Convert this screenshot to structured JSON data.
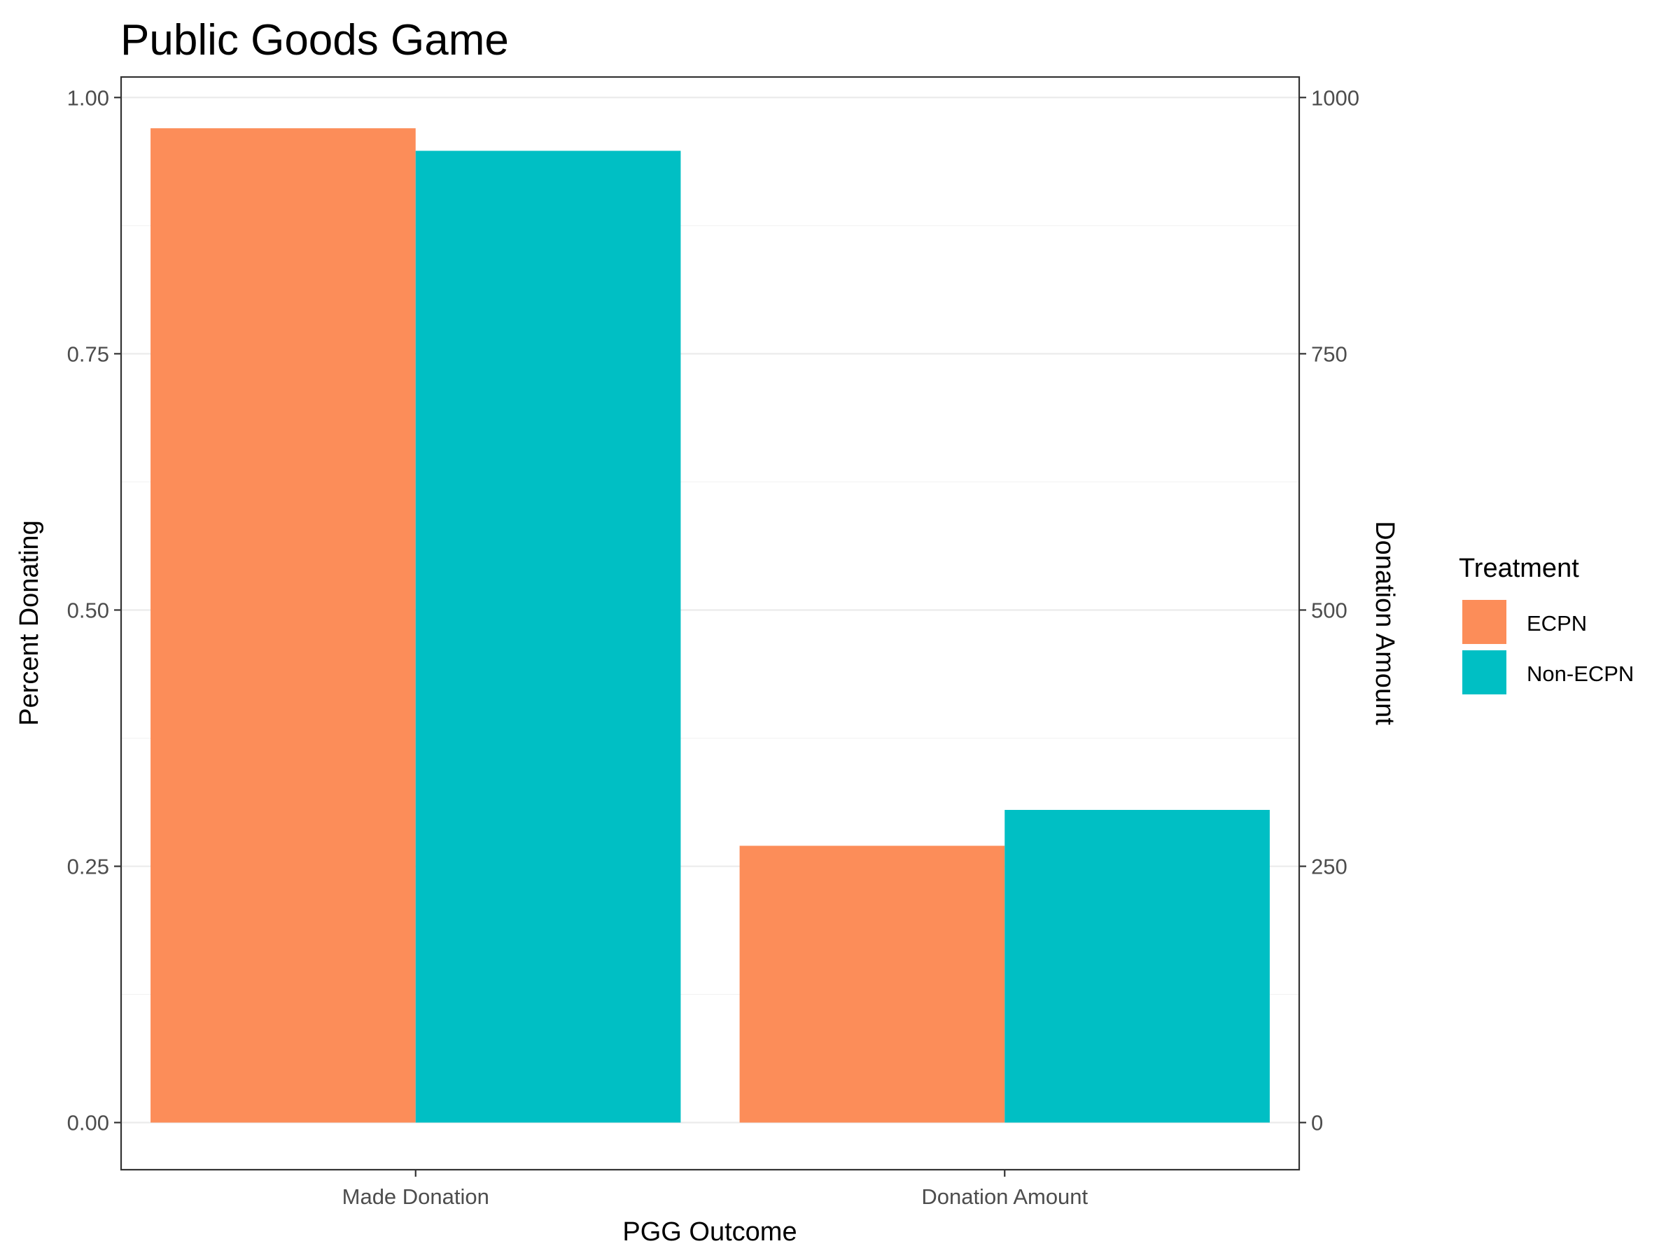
{
  "chart_data": {
    "type": "bar",
    "title": "Public Goods Game",
    "xlabel": "PGG Outcome",
    "ylabel": "Percent Donating",
    "y2label": "Donation Amount",
    "categories": [
      "Made Donation",
      "Donation Amount"
    ],
    "series": [
      {
        "name": "ECPN",
        "color": "#fc8d59",
        "values": [
          0.97,
          0.27
        ]
      },
      {
        "name": "Non-ECPN",
        "color": "#00bfc4",
        "values": [
          0.948,
          0.305
        ]
      }
    ],
    "ylim": [
      -0.046,
      1.02
    ],
    "y2lim": [
      -46,
      1020
    ],
    "yticks": [
      0.0,
      0.25,
      0.5,
      0.75,
      1.0
    ],
    "ytick_labels": [
      "0.00",
      "0.25",
      "0.50",
      "0.75",
      "1.00"
    ],
    "y2ticks": [
      0,
      250,
      500,
      750,
      1000
    ],
    "y2tick_labels": [
      "0",
      "250",
      "500",
      "750",
      "1000"
    ],
    "grid": true,
    "legend": {
      "title": "Treatment",
      "position": "right"
    }
  }
}
